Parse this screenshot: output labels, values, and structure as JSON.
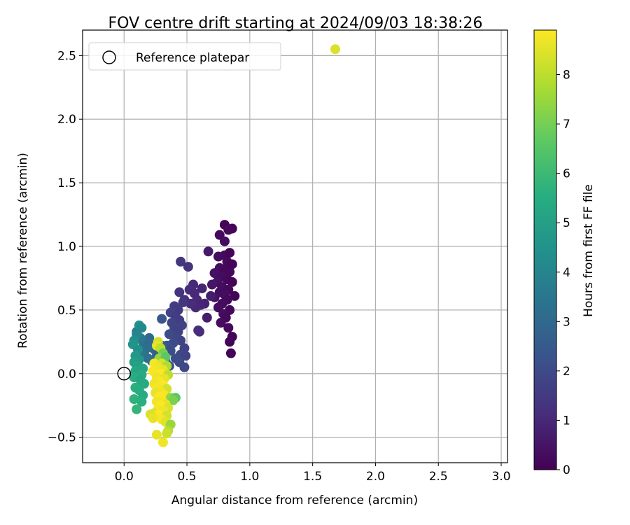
{
  "chart_data": {
    "type": "scatter",
    "title": "FOV centre drift starting at 2024/09/03 18:38:26",
    "xlabel": "Angular distance from reference (arcmin)",
    "ylabel": "Rotation from reference (arcmin)",
    "xlim": [
      -0.33,
      3.05
    ],
    "ylim": [
      -0.7,
      2.7
    ],
    "xticks": [
      0.0,
      0.5,
      1.0,
      1.5,
      2.0,
      2.5,
      3.0
    ],
    "xtick_labels": [
      "0.0",
      "0.5",
      "1.0",
      "1.5",
      "2.0",
      "2.5",
      "3.0"
    ],
    "yticks": [
      -0.5,
      0.0,
      0.5,
      1.0,
      1.5,
      2.0,
      2.5
    ],
    "ytick_labels": [
      "−0.5",
      "0.0",
      "0.5",
      "1.0",
      "1.5",
      "2.0",
      "2.5"
    ],
    "grid": true,
    "legend": {
      "position": "top-left",
      "entries": [
        "Reference platepar"
      ]
    },
    "reference_point": {
      "x": 0.0,
      "y": 0.0
    },
    "colorbar": {
      "label": "Hours from first FF file",
      "min": 0,
      "max": 8.9,
      "ticks": [
        0,
        1,
        2,
        3,
        4,
        5,
        6,
        7,
        8
      ],
      "tick_labels": [
        "0",
        "1",
        "2",
        "3",
        "4",
        "5",
        "6",
        "7",
        "8"
      ],
      "colormap": "viridis"
    },
    "points": [
      [
        0.8,
        1.17,
        0.1
      ],
      [
        0.86,
        1.14,
        0.1
      ],
      [
        0.83,
        1.13,
        0.2
      ],
      [
        0.76,
        1.09,
        0.2
      ],
      [
        0.8,
        1.04,
        0.3
      ],
      [
        0.67,
        0.96,
        0.6
      ],
      [
        0.8,
        0.93,
        0.2
      ],
      [
        0.84,
        0.95,
        0.1
      ],
      [
        0.75,
        0.92,
        0.3
      ],
      [
        0.82,
        0.88,
        0.2
      ],
      [
        0.86,
        0.86,
        0.1
      ],
      [
        0.76,
        0.83,
        0.3
      ],
      [
        0.8,
        0.82,
        0.2
      ],
      [
        0.84,
        0.8,
        0.2
      ],
      [
        0.72,
        0.79,
        0.4
      ],
      [
        0.78,
        0.76,
        0.3
      ],
      [
        0.82,
        0.74,
        0.2
      ],
      [
        0.86,
        0.72,
        0.1
      ],
      [
        0.74,
        0.72,
        0.4
      ],
      [
        0.7,
        0.7,
        0.5
      ],
      [
        0.78,
        0.68,
        0.3
      ],
      [
        0.83,
        0.66,
        0.2
      ],
      [
        0.76,
        0.64,
        0.3
      ],
      [
        0.8,
        0.62,
        0.3
      ],
      [
        0.88,
        0.61,
        0.1
      ],
      [
        0.72,
        0.6,
        0.4
      ],
      [
        0.82,
        0.58,
        0.2
      ],
      [
        0.78,
        0.55,
        0.3
      ],
      [
        0.75,
        0.52,
        0.3
      ],
      [
        0.84,
        0.5,
        0.2
      ],
      [
        0.79,
        0.47,
        0.3
      ],
      [
        0.81,
        0.44,
        0.2
      ],
      [
        0.77,
        0.4,
        0.3
      ],
      [
        0.83,
        0.36,
        0.2
      ],
      [
        0.86,
        0.29,
        0.1
      ],
      [
        0.84,
        0.25,
        0.1
      ],
      [
        0.85,
        0.16,
        0.1
      ],
      [
        0.66,
        0.44,
        0.7
      ],
      [
        0.64,
        0.55,
        0.8
      ],
      [
        0.69,
        0.61,
        0.7
      ],
      [
        0.62,
        0.67,
        0.9
      ],
      [
        0.55,
        0.7,
        1.0
      ],
      [
        0.52,
        0.66,
        1.1
      ],
      [
        0.56,
        0.63,
        1.0
      ],
      [
        0.58,
        0.58,
        1.0
      ],
      [
        0.61,
        0.54,
        0.9
      ],
      [
        0.57,
        0.52,
        1.0
      ],
      [
        0.53,
        0.55,
        1.1
      ],
      [
        0.48,
        0.58,
        1.2
      ],
      [
        0.44,
        0.64,
        1.3
      ],
      [
        0.45,
        0.88,
        1.4
      ],
      [
        0.51,
        0.84,
        1.3
      ],
      [
        0.47,
        0.56,
        1.4
      ],
      [
        0.4,
        0.53,
        1.6
      ],
      [
        0.43,
        0.5,
        1.5
      ],
      [
        0.37,
        0.48,
        1.7
      ],
      [
        0.41,
        0.45,
        1.6
      ],
      [
        0.44,
        0.42,
        1.6
      ],
      [
        0.38,
        0.4,
        1.8
      ],
      [
        0.46,
        0.38,
        1.7
      ],
      [
        0.4,
        0.36,
        1.8
      ],
      [
        0.43,
        0.33,
        1.7
      ],
      [
        0.59,
        0.34,
        1.2
      ],
      [
        0.6,
        0.33,
        1.1
      ],
      [
        0.36,
        0.31,
        2.0
      ],
      [
        0.3,
        0.43,
        2.4
      ],
      [
        0.42,
        0.28,
        1.9
      ],
      [
        0.45,
        0.26,
        1.8
      ],
      [
        0.39,
        0.24,
        2.0
      ],
      [
        0.34,
        0.22,
        2.2
      ],
      [
        0.48,
        0.2,
        1.8
      ],
      [
        0.37,
        0.18,
        2.1
      ],
      [
        0.45,
        0.15,
        1.9
      ],
      [
        0.41,
        0.12,
        2.0
      ],
      [
        0.49,
        0.14,
        1.8
      ],
      [
        0.44,
        0.09,
        2.0
      ],
      [
        0.48,
        0.05,
        1.9
      ],
      [
        0.36,
        0.06,
        2.2
      ],
      [
        0.3,
        0.22,
        2.5
      ],
      [
        0.29,
        0.17,
        2.6
      ],
      [
        0.24,
        0.19,
        2.8
      ],
      [
        0.26,
        0.14,
        2.7
      ],
      [
        0.22,
        0.1,
        2.9
      ],
      [
        0.25,
        0.06,
        2.8
      ],
      [
        0.33,
        0.1,
        2.4
      ],
      [
        0.2,
        0.28,
        3.0
      ],
      [
        0.15,
        0.25,
        3.3
      ],
      [
        0.2,
        0.24,
        3.1
      ],
      [
        0.18,
        0.2,
        3.2
      ],
      [
        0.13,
        0.28,
        3.5
      ],
      [
        0.1,
        0.33,
        3.7
      ],
      [
        0.16,
        0.17,
        3.3
      ],
      [
        0.14,
        0.14,
        3.5
      ],
      [
        0.19,
        0.12,
        3.3
      ],
      [
        0.12,
        0.38,
        4.5
      ],
      [
        0.14,
        0.36,
        4.2
      ],
      [
        0.1,
        0.31,
        4.0
      ],
      [
        0.08,
        0.26,
        4.3
      ],
      [
        0.07,
        0.23,
        4.6
      ],
      [
        0.11,
        0.19,
        4.4
      ],
      [
        0.09,
        0.14,
        4.8
      ],
      [
        0.12,
        0.11,
        4.7
      ],
      [
        0.08,
        0.09,
        5.0
      ],
      [
        0.1,
        0.06,
        5.1
      ],
      [
        0.12,
        0.05,
        5.0
      ],
      [
        0.15,
        0.04,
        5.2
      ],
      [
        0.09,
        0.02,
        5.3
      ],
      [
        0.11,
        0.0,
        5.2
      ],
      [
        0.14,
        -0.01,
        5.4
      ],
      [
        0.08,
        -0.03,
        5.5
      ],
      [
        0.13,
        -0.05,
        5.3
      ],
      [
        0.16,
        -0.08,
        5.4
      ],
      [
        0.09,
        -0.11,
        5.6
      ],
      [
        0.12,
        -0.13,
        5.5
      ],
      [
        0.15,
        -0.17,
        5.4
      ],
      [
        0.08,
        -0.2,
        5.7
      ],
      [
        0.14,
        -0.22,
        5.6
      ],
      [
        0.1,
        -0.28,
        5.8
      ],
      [
        0.27,
        0.25,
        8.3
      ],
      [
        0.26,
        0.22,
        8.6
      ],
      [
        0.29,
        0.2,
        8.0
      ],
      [
        0.31,
        0.16,
        7.0
      ],
      [
        0.28,
        0.12,
        7.5
      ],
      [
        0.33,
        0.13,
        6.6
      ],
      [
        0.24,
        0.08,
        8.8
      ],
      [
        0.3,
        0.08,
        8.4
      ],
      [
        0.34,
        0.06,
        7.8
      ],
      [
        0.27,
        0.05,
        8.7
      ],
      [
        0.31,
        0.03,
        8.6
      ],
      [
        0.23,
        0.02,
        8.8
      ],
      [
        0.29,
        0.0,
        8.9
      ],
      [
        0.35,
        -0.01,
        8.0
      ],
      [
        0.26,
        -0.03,
        8.7
      ],
      [
        0.32,
        -0.04,
        8.6
      ],
      [
        0.28,
        -0.06,
        8.8
      ],
      [
        0.24,
        -0.08,
        8.7
      ],
      [
        0.31,
        -0.09,
        8.9
      ],
      [
        0.27,
        -0.11,
        8.8
      ],
      [
        0.34,
        -0.12,
        8.3
      ],
      [
        0.29,
        -0.14,
        8.7
      ],
      [
        0.25,
        -0.15,
        8.6
      ],
      [
        0.32,
        -0.17,
        8.8
      ],
      [
        0.28,
        -0.18,
        8.9
      ],
      [
        0.37,
        -0.19,
        7.4
      ],
      [
        0.41,
        -0.19,
        6.6
      ],
      [
        0.39,
        -0.21,
        7.1
      ],
      [
        0.3,
        -0.21,
        8.8
      ],
      [
        0.26,
        -0.22,
        8.7
      ],
      [
        0.33,
        -0.24,
        8.6
      ],
      [
        0.29,
        -0.25,
        8.9
      ],
      [
        0.35,
        -0.27,
        8.4
      ],
      [
        0.27,
        -0.28,
        8.8
      ],
      [
        0.31,
        -0.29,
        8.7
      ],
      [
        0.24,
        -0.31,
        8.5
      ],
      [
        0.28,
        -0.32,
        8.9
      ],
      [
        0.34,
        -0.33,
        8.3
      ],
      [
        0.21,
        -0.32,
        8.4
      ],
      [
        0.23,
        -0.35,
        8.6
      ],
      [
        0.3,
        -0.36,
        8.8
      ],
      [
        0.33,
        -0.38,
        8.5
      ],
      [
        0.37,
        -0.4,
        7.5
      ],
      [
        0.35,
        -0.45,
        7.9
      ],
      [
        0.34,
        -0.47,
        8.2
      ],
      [
        0.26,
        -0.48,
        8.6
      ],
      [
        0.31,
        -0.54,
        8.7
      ],
      [
        1.68,
        2.55,
        8.4
      ]
    ]
  }
}
